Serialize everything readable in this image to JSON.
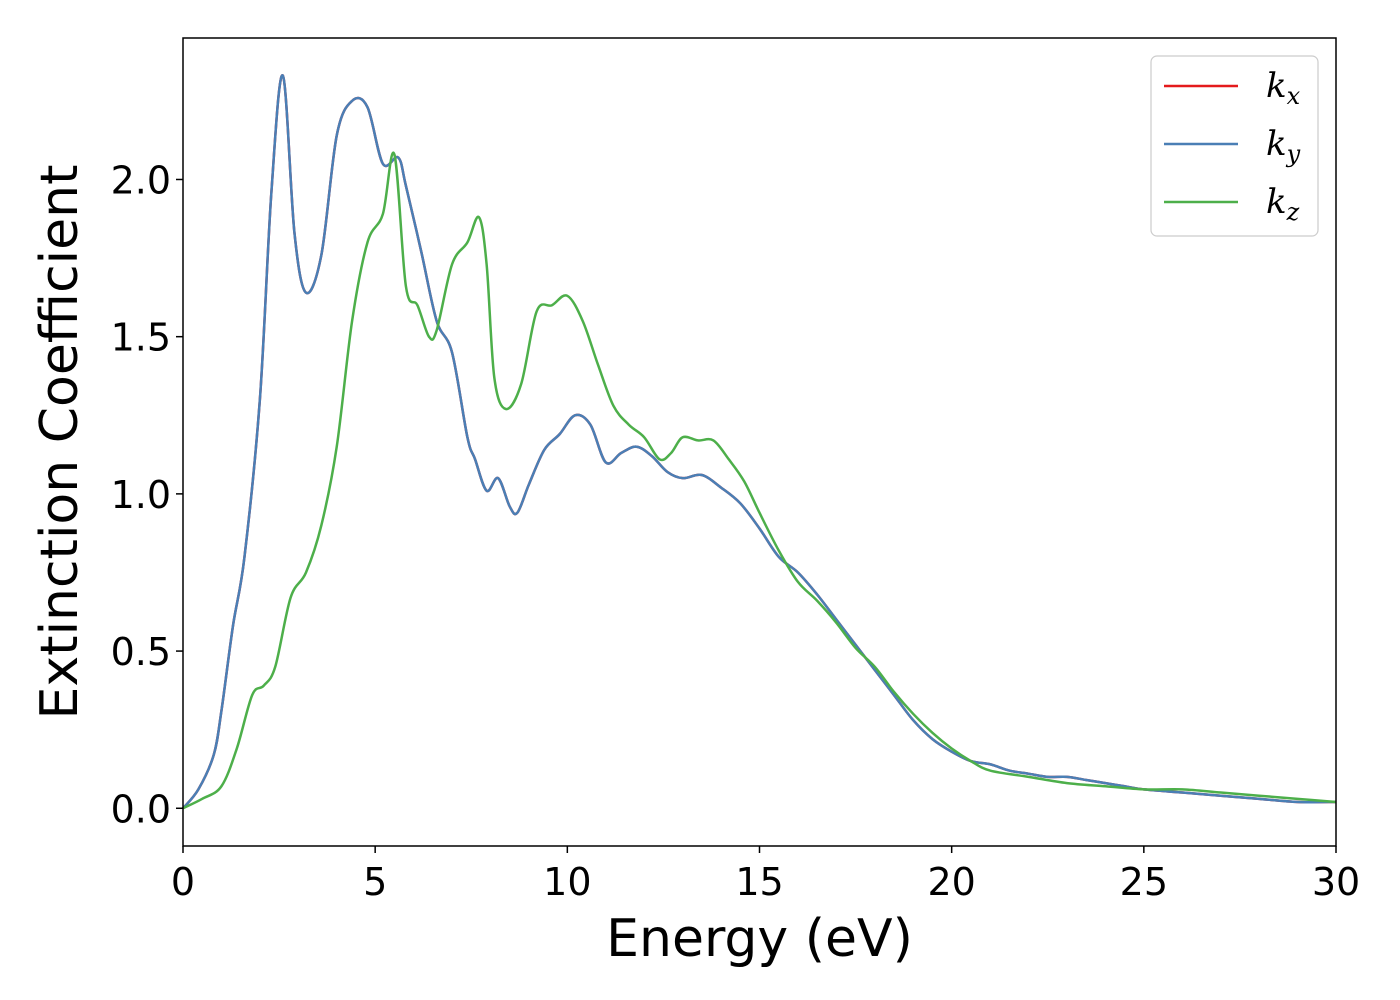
{
  "chart_data": {
    "type": "line",
    "title": "",
    "xlabel": "Energy (eV)",
    "ylabel": "Extinction Coefficient",
    "xlim": [
      0,
      30
    ],
    "ylim": [
      -0.12,
      2.45
    ],
    "xticks": [
      "0",
      "5",
      "10",
      "15",
      "20",
      "25",
      "30"
    ],
    "yticks": [
      "0.0",
      "0.5",
      "1.0",
      "1.5",
      "2.0"
    ],
    "grid": false,
    "legend_position": "top-right",
    "series": [
      {
        "name": "k",
        "subscript": "x",
        "color": "#e41a1c",
        "x": [
          0,
          0.4,
          0.8,
          1.0,
          1.3,
          1.6,
          2.0,
          2.3,
          2.6,
          2.9,
          3.2,
          3.6,
          4.0,
          4.4,
          4.8,
          5.2,
          5.6,
          5.8,
          6.2,
          6.6,
          7.0,
          7.4,
          7.6,
          7.9,
          8.2,
          8.5,
          8.7,
          9.0,
          9.4,
          9.8,
          10.2,
          10.6,
          11.0,
          11.4,
          11.8,
          12.2,
          12.6,
          13.0,
          13.5,
          14.0,
          14.5,
          15.0,
          15.5,
          16.0,
          16.5,
          17.0,
          17.5,
          18.0,
          18.5,
          19.0,
          19.5,
          20.0,
          20.5,
          21.0,
          21.5,
          22.0,
          22.5,
          23.0,
          23.5,
          24.0,
          24.5,
          25.0,
          26.0,
          27.0,
          28.0,
          29.0,
          30.0
        ],
        "y": [
          0.0,
          0.06,
          0.17,
          0.31,
          0.58,
          0.8,
          1.3,
          1.96,
          2.33,
          1.83,
          1.64,
          1.76,
          2.14,
          2.25,
          2.23,
          2.05,
          2.07,
          1.98,
          1.77,
          1.55,
          1.45,
          1.18,
          1.11,
          1.01,
          1.05,
          0.96,
          0.94,
          1.03,
          1.14,
          1.19,
          1.25,
          1.22,
          1.1,
          1.13,
          1.15,
          1.12,
          1.07,
          1.05,
          1.06,
          1.02,
          0.97,
          0.89,
          0.8,
          0.75,
          0.68,
          0.6,
          0.52,
          0.44,
          0.36,
          0.28,
          0.22,
          0.18,
          0.15,
          0.14,
          0.12,
          0.11,
          0.1,
          0.1,
          0.09,
          0.08,
          0.07,
          0.06,
          0.05,
          0.04,
          0.03,
          0.02,
          0.02
        ]
      },
      {
        "name": "k",
        "subscript": "y",
        "color": "#4a7fb5",
        "x": [
          0,
          0.4,
          0.8,
          1.0,
          1.3,
          1.6,
          2.0,
          2.3,
          2.6,
          2.9,
          3.2,
          3.6,
          4.0,
          4.4,
          4.8,
          5.2,
          5.6,
          5.8,
          6.2,
          6.6,
          7.0,
          7.4,
          7.6,
          7.9,
          8.2,
          8.5,
          8.7,
          9.0,
          9.4,
          9.8,
          10.2,
          10.6,
          11.0,
          11.4,
          11.8,
          12.2,
          12.6,
          13.0,
          13.5,
          14.0,
          14.5,
          15.0,
          15.5,
          16.0,
          16.5,
          17.0,
          17.5,
          18.0,
          18.5,
          19.0,
          19.5,
          20.0,
          20.5,
          21.0,
          21.5,
          22.0,
          22.5,
          23.0,
          23.5,
          24.0,
          24.5,
          25.0,
          26.0,
          27.0,
          28.0,
          29.0,
          30.0
        ],
        "y": [
          0.0,
          0.06,
          0.17,
          0.31,
          0.58,
          0.8,
          1.3,
          1.96,
          2.33,
          1.83,
          1.64,
          1.76,
          2.14,
          2.25,
          2.23,
          2.05,
          2.07,
          1.98,
          1.77,
          1.55,
          1.45,
          1.18,
          1.11,
          1.01,
          1.05,
          0.96,
          0.94,
          1.03,
          1.14,
          1.19,
          1.25,
          1.22,
          1.1,
          1.13,
          1.15,
          1.12,
          1.07,
          1.05,
          1.06,
          1.02,
          0.97,
          0.89,
          0.8,
          0.75,
          0.68,
          0.6,
          0.52,
          0.44,
          0.36,
          0.28,
          0.22,
          0.18,
          0.15,
          0.14,
          0.12,
          0.11,
          0.1,
          0.1,
          0.09,
          0.08,
          0.07,
          0.06,
          0.05,
          0.04,
          0.03,
          0.02,
          0.02
        ]
      },
      {
        "name": "k",
        "subscript": "z",
        "color": "#4daf4a",
        "x": [
          0,
          0.5,
          1.0,
          1.4,
          1.8,
          2.1,
          2.4,
          2.8,
          3.2,
          3.6,
          4.0,
          4.4,
          4.8,
          5.2,
          5.5,
          5.8,
          6.1,
          6.4,
          6.6,
          7.0,
          7.4,
          7.7,
          7.9,
          8.1,
          8.4,
          8.8,
          9.2,
          9.6,
          10.0,
          10.4,
          10.8,
          11.2,
          11.6,
          12.0,
          12.4,
          12.7,
          13.0,
          13.4,
          13.8,
          14.2,
          14.6,
          15.0,
          15.5,
          16.0,
          16.5,
          17.0,
          17.5,
          18.0,
          18.5,
          19.0,
          19.5,
          20.0,
          20.5,
          21.0,
          22.0,
          23.0,
          24.0,
          25.0,
          26.0,
          27.0,
          28.0,
          29.0,
          30.0
        ],
        "y": [
          0.0,
          0.03,
          0.07,
          0.19,
          0.36,
          0.39,
          0.45,
          0.67,
          0.75,
          0.9,
          1.15,
          1.55,
          1.8,
          1.89,
          2.08,
          1.66,
          1.6,
          1.5,
          1.52,
          1.73,
          1.8,
          1.88,
          1.73,
          1.37,
          1.27,
          1.35,
          1.58,
          1.6,
          1.63,
          1.55,
          1.41,
          1.28,
          1.22,
          1.18,
          1.11,
          1.13,
          1.18,
          1.17,
          1.17,
          1.11,
          1.04,
          0.94,
          0.82,
          0.72,
          0.66,
          0.59,
          0.51,
          0.45,
          0.37,
          0.3,
          0.24,
          0.19,
          0.15,
          0.12,
          0.1,
          0.08,
          0.07,
          0.06,
          0.06,
          0.05,
          0.04,
          0.03,
          0.02
        ]
      }
    ]
  }
}
